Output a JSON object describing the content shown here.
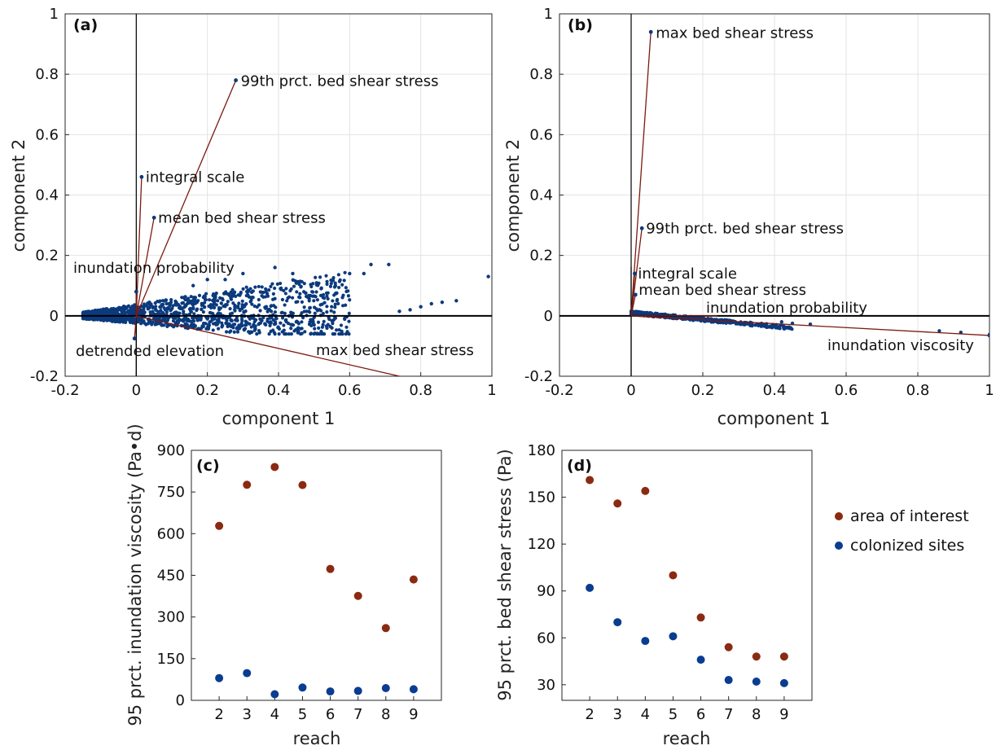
{
  "colors": {
    "area_of_interest": "#8b2a12",
    "colonized_sites": "#0a3d91",
    "score_points": "#0b3a7d",
    "loading_line": "#7b1a10",
    "grid": "#e3e3e3",
    "axis": "#000000"
  },
  "legend": {
    "position": "right",
    "items": [
      {
        "label": "area of interest",
        "color": "#8b2a12"
      },
      {
        "label": "colonized sites",
        "color": "#0a3d91"
      }
    ]
  },
  "chart_data": [
    {
      "id": "a",
      "panel_label": "(a)",
      "type": "scatter",
      "xlabel": "component 1",
      "ylabel": "component 2",
      "xlim": [
        -0.2,
        1
      ],
      "ylim": [
        -0.2,
        1
      ],
      "xticks": [
        -0.2,
        0,
        0.2,
        0.4,
        0.6,
        0.8,
        1
      ],
      "yticks": [
        -0.2,
        0,
        0.2,
        0.4,
        0.6,
        0.8,
        1
      ],
      "xtick_labels": [
        "-0.2",
        "0",
        "0.2",
        "0.4",
        "0.6",
        "0.8",
        "1"
      ],
      "ytick_labels": [
        "-0.2",
        "0",
        "0.2",
        "0.4",
        "0.6",
        "0.8",
        "1"
      ],
      "grid": true,
      "loadings": [
        {
          "label": "99th prct. bed shear stress",
          "x": 0.28,
          "y": 0.78,
          "marker": true
        },
        {
          "label": "integral scale",
          "x": 0.015,
          "y": 0.46,
          "marker": true
        },
        {
          "label": "mean bed shear stress",
          "x": 0.05,
          "y": 0.325,
          "marker": true
        },
        {
          "label": "inundation probability",
          "x": 0.0,
          "y": 0.08,
          "marker": true
        },
        {
          "label": "detrended elevation",
          "x": -0.005,
          "y": -0.075,
          "marker": true
        },
        {
          "label": "max bed shear stress",
          "x": 0.74,
          "y": -0.2,
          "marker": false
        }
      ],
      "scores": {
        "cloud": {
          "x_min": -0.15,
          "x_max": 0.6,
          "y_min": -0.06,
          "y_max": 0.07
        },
        "outliers": [
          [
            0.99,
            0.13
          ],
          [
            0.9,
            0.05
          ],
          [
            0.86,
            0.045
          ],
          [
            0.83,
            0.04
          ],
          [
            0.8,
            0.03
          ],
          [
            0.77,
            0.02
          ],
          [
            0.74,
            0.015
          ],
          [
            0.71,
            0.17
          ],
          [
            0.66,
            0.17
          ],
          [
            0.64,
            0.14
          ],
          [
            0.6,
            0.14
          ],
          [
            0.56,
            0.1
          ],
          [
            0.52,
            0.09
          ],
          [
            0.44,
            0.14
          ],
          [
            0.39,
            0.16
          ],
          [
            0.3,
            0.14
          ],
          [
            0.25,
            0.12
          ],
          [
            0.2,
            0.12
          ],
          [
            0.16,
            0.1
          ],
          [
            0.55,
            -0.04
          ],
          [
            0.5,
            -0.03
          ],
          [
            0.45,
            -0.02
          ]
        ]
      }
    },
    {
      "id": "b",
      "panel_label": "(b)",
      "type": "scatter",
      "xlabel": "component 1",
      "ylabel": "component 2",
      "xlim": [
        -0.2,
        1
      ],
      "ylim": [
        -0.2,
        1
      ],
      "xticks": [
        -0.2,
        0,
        0.2,
        0.4,
        0.6,
        0.8,
        1
      ],
      "yticks": [
        -0.2,
        0,
        0.2,
        0.4,
        0.6,
        0.8,
        1
      ],
      "xtick_labels": [
        "-0.2",
        "0",
        "0.2",
        "0.4",
        "0.6",
        "0.8",
        "1"
      ],
      "ytick_labels": [
        "-0.2",
        "0",
        "0.2",
        "0.4",
        "0.6",
        "0.8",
        "1"
      ],
      "grid": true,
      "loadings": [
        {
          "label": "max bed shear stress",
          "x": 0.055,
          "y": 0.94,
          "marker": true
        },
        {
          "label": "99th prct. bed shear stress",
          "x": 0.03,
          "y": 0.29,
          "marker": true
        },
        {
          "label": "integral scale",
          "x": 0.01,
          "y": 0.14,
          "marker": true
        },
        {
          "label": "mean bed shear stress",
          "x": 0.012,
          "y": 0.07,
          "marker": true
        },
        {
          "label": "inundation probability",
          "x": 0.24,
          "y": 0.0,
          "marker": false
        },
        {
          "label": "inundation viscosity",
          "x": 1.0,
          "y": -0.065,
          "marker": true
        }
      ],
      "scores": {
        "cloud": {
          "x_min": 0.0,
          "x_max": 0.45,
          "y_min": -0.035,
          "y_max": 0.015
        },
        "outliers": [
          [
            0.5,
            -0.028
          ],
          [
            0.86,
            -0.05
          ],
          [
            0.92,
            -0.055
          ],
          [
            1.0,
            -0.062
          ],
          [
            0.45,
            -0.025
          ],
          [
            0.42,
            -0.02
          ]
        ]
      }
    },
    {
      "id": "c",
      "panel_label": "(c)",
      "type": "scatter",
      "xlabel": "reach",
      "ylabel": "95 prct. inundation viscosity (Pa•d)",
      "xlim": [
        1,
        10
      ],
      "ylim": [
        0,
        900
      ],
      "xticks": [
        2,
        3,
        4,
        5,
        6,
        7,
        8,
        9
      ],
      "yticks": [
        0,
        150,
        300,
        450,
        600,
        750,
        900
      ],
      "xtick_labels": [
        "2",
        "3",
        "4",
        "5",
        "6",
        "7",
        "8",
        "9"
      ],
      "ytick_labels": [
        "0",
        "150",
        "300",
        "450",
        "600",
        "750",
        "900"
      ],
      "grid": false,
      "x": [
        2,
        3,
        4,
        5,
        6,
        7,
        8,
        9
      ],
      "series": [
        {
          "name": "area of interest",
          "color": "#8b2a12",
          "values": [
            628,
            776,
            840,
            775,
            473,
            376,
            260,
            435
          ]
        },
        {
          "name": "colonized sites",
          "color": "#0a3d91",
          "values": [
            80,
            98,
            22,
            46,
            32,
            34,
            44,
            40
          ]
        }
      ]
    },
    {
      "id": "d",
      "panel_label": "(d)",
      "type": "scatter",
      "xlabel": "reach",
      "ylabel": "95 prct. bed shear stress (Pa)",
      "xlim": [
        1,
        10
      ],
      "ylim": [
        20,
        180
      ],
      "xticks": [
        2,
        3,
        4,
        5,
        6,
        7,
        8,
        9
      ],
      "yticks": [
        30,
        60,
        90,
        120,
        150,
        180
      ],
      "xtick_labels": [
        "2",
        "3",
        "4",
        "5",
        "6",
        "7",
        "8",
        "9"
      ],
      "ytick_labels": [
        "30",
        "60",
        "90",
        "120",
        "150",
        "180"
      ],
      "grid": false,
      "x": [
        2,
        3,
        4,
        5,
        6,
        7,
        8,
        9
      ],
      "series": [
        {
          "name": "area of interest",
          "color": "#8b2a12",
          "values": [
            161,
            146,
            154,
            100,
            73,
            54,
            48,
            48
          ]
        },
        {
          "name": "colonized sites",
          "color": "#0a3d91",
          "values": [
            92,
            70,
            58,
            61,
            46,
            33,
            32,
            31
          ]
        }
      ]
    }
  ]
}
